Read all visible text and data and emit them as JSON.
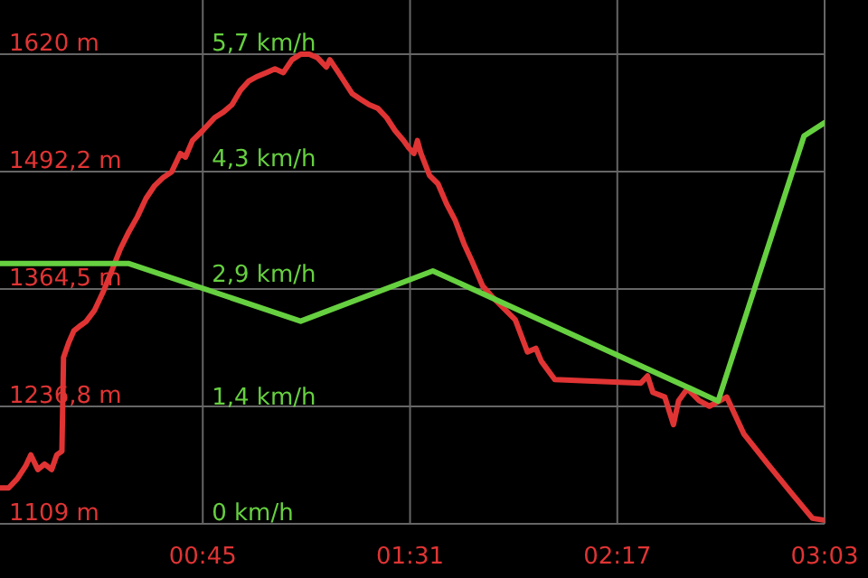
{
  "chart_data": {
    "type": "line",
    "xlim": [
      0,
      3.05
    ],
    "ylim": [
      1109,
      1679
    ],
    "y2lim": [
      0,
      6.36
    ],
    "xticks": [
      {
        "value": 0.75,
        "label": "00:45"
      },
      {
        "value": 1.5167,
        "label": "01:31"
      },
      {
        "value": 2.2833,
        "label": "02:17"
      },
      {
        "value": 3.05,
        "label": "03:03"
      }
    ],
    "yticks": [
      {
        "value": 1109,
        "label": "1109 m"
      },
      {
        "value": 1236.8,
        "label": "1236,8 m"
      },
      {
        "value": 1364.5,
        "label": "1364,5 m"
      },
      {
        "value": 1492.2,
        "label": "1492,2 m"
      },
      {
        "value": 1620,
        "label": "1620 m"
      }
    ],
    "y2ticks": [
      {
        "value": 0,
        "label": "0 km/h"
      },
      {
        "value": 1.4,
        "label": "1,4 km/h"
      },
      {
        "value": 2.9,
        "label": "2,9 km/h"
      },
      {
        "value": 4.3,
        "label": "4,3 km/h"
      },
      {
        "value": 5.7,
        "label": "5,7 km/h"
      }
    ],
    "grid": true,
    "marker": "none",
    "line_style": "solid",
    "series": [
      {
        "color": "#e03434",
        "x": [
          0,
          0.032,
          0.064,
          0.095,
          0.114,
          0.14,
          0.165,
          0.191,
          0.21,
          0.229,
          0.235,
          0.254,
          0.273,
          0.299,
          0.318,
          0.349,
          0.381,
          0.413,
          0.445,
          0.477,
          0.508,
          0.54,
          0.572,
          0.604,
          0.635,
          0.667,
          0.686,
          0.712,
          0.75,
          0.794,
          0.826,
          0.858,
          0.89,
          0.921,
          0.953,
          0.985,
          1.017,
          1.048,
          1.08,
          1.112,
          1.144,
          1.175,
          1.207,
          1.22,
          1.252,
          1.303,
          1.334,
          1.366,
          1.398,
          1.43,
          1.461,
          1.493,
          1.512,
          1.531,
          1.544,
          1.557,
          1.589,
          1.62,
          1.652,
          1.684,
          1.716,
          1.747,
          1.785,
          1.824,
          1.906,
          1.951,
          1.982,
          2.002,
          2.052,
          2.37,
          2.395,
          2.415,
          2.459,
          2.491,
          2.51,
          2.542,
          2.586,
          2.624,
          2.688,
          2.751,
          2.84,
          2.923,
          3.005,
          3.05
        ],
        "values": [
          1148,
          1148,
          1158,
          1172,
          1184,
          1168,
          1174,
          1168,
          1184,
          1188,
          1290,
          1306,
          1319,
          1325,
          1329,
          1341,
          1361,
          1384,
          1408,
          1427,
          1443,
          1463,
          1477,
          1486,
          1492,
          1512,
          1508,
          1526,
          1537,
          1551,
          1557,
          1565,
          1581,
          1591,
          1596,
          1600,
          1604,
          1600,
          1614,
          1620,
          1620,
          1616,
          1606,
          1614,
          1600,
          1577,
          1571,
          1565,
          1561,
          1551,
          1537,
          1526,
          1518,
          1512,
          1526,
          1512,
          1488,
          1479,
          1457,
          1439,
          1414,
          1394,
          1368,
          1355,
          1331,
          1296,
          1300,
          1286,
          1266,
          1262,
          1270,
          1252,
          1247,
          1217,
          1243,
          1256,
          1243,
          1237,
          1247,
          1207,
          1174,
          1144,
          1115,
          1113
        ]
      },
      {
        "color": "#66d040",
        "axis": "y2",
        "x": [
          0,
          0.477,
          1.112,
          1.601,
          2.656,
          2.974,
          3.05
        ],
        "values": [
          3.16,
          3.16,
          2.46,
          3.07,
          1.49,
          4.71,
          4.87
        ]
      }
    ]
  }
}
